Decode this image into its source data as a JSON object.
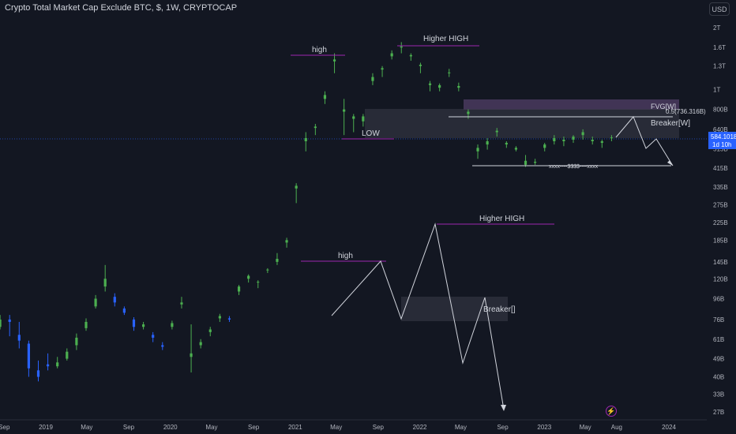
{
  "header": {
    "title": "Crypto Total Market Cap Exclude BTC, $, 1W, CRYPTOCAP",
    "currency_label": "USD"
  },
  "icons": {
    "replay": "lightning-icon"
  },
  "colors": {
    "background": "#131722",
    "up": "#4caf50",
    "down": "#2962ff",
    "annotation": "#9c27b0",
    "price_badge": "#2962ff"
  },
  "chart_data": {
    "type": "candlestick",
    "title": "Crypto Total Market Cap Exclude BTC, $, 1W, CRYPTOCAP",
    "y_scale": "log",
    "ylim": [
      "26B",
      "2.6T"
    ],
    "y_ticks": [
      "2T",
      "1.6T",
      "1.3T",
      "1T",
      "800B",
      "640B",
      "515B",
      "415B",
      "335B",
      "275B",
      "225B",
      "185B",
      "145B",
      "120B",
      "96B",
      "76B",
      "61B",
      "49B",
      "40B",
      "33B",
      "27B"
    ],
    "x_ticks": [
      "Sep",
      "2019",
      "May",
      "Sep",
      "2020",
      "May",
      "Sep",
      "2021",
      "May",
      "Sep",
      "2022",
      "May",
      "Sep",
      "2023",
      "May",
      "Aug",
      "2024"
    ],
    "last_price": "584.101B",
    "price_badge": {
      "value": "584.1018",
      "countdown": "1d 10h"
    },
    "series": [
      {
        "name": "candles",
        "values": [
          {
            "date": "2018-08-20",
            "v": [
              70,
              80,
              76,
              68
            ]
          },
          {
            "date": "2018-09-17",
            "v": [
              76,
              80,
              74,
              63
            ]
          },
          {
            "date": "2018-10-15",
            "v": [
              64,
              74,
              60,
              55
            ]
          },
          {
            "date": "2018-11-12",
            "v": [
              58,
              60,
              44,
              40
            ]
          },
          {
            "date": "2018-12-10",
            "v": [
              43,
              48,
              40,
              38
            ]
          },
          {
            "date": "2019-01-07",
            "v": [
              46,
              52,
              45,
              43
            ]
          },
          {
            "date": "2019-02-04",
            "v": [
              45,
              50,
              47,
              44
            ]
          },
          {
            "date": "2019-03-04",
            "v": [
              49,
              55,
              53,
              48
            ]
          },
          {
            "date": "2019-04-01",
            "v": [
              57,
              65,
              62,
              54
            ]
          },
          {
            "date": "2019-04-29",
            "v": [
              69,
              77,
              74,
              67
            ]
          },
          {
            "date": "2019-05-27",
            "v": [
              88,
              100,
              96,
              86
            ]
          },
          {
            "date": "2019-06-24",
            "v": [
              110,
              140,
              120,
              104
            ]
          },
          {
            "date": "2019-07-22",
            "v": [
              98,
              102,
              92,
              88
            ]
          },
          {
            "date": "2019-08-19",
            "v": [
              86,
              88,
              82,
              80
            ]
          },
          {
            "date": "2019-09-16",
            "v": [
              76,
              78,
              70,
              67
            ]
          },
          {
            "date": "2019-10-14",
            "v": [
              70,
              74,
              72,
              68
            ]
          },
          {
            "date": "2019-11-11",
            "v": [
              64,
              66,
              62,
              59
            ]
          },
          {
            "date": "2019-12-09",
            "v": [
              57,
              59,
              56,
              54
            ]
          },
          {
            "date": "2020-01-06",
            "v": [
              70,
              75,
              73,
              68
            ]
          },
          {
            "date": "2020-02-03",
            "v": [
              90,
              98,
              92,
              86
            ]
          },
          {
            "date": "2020-03-02",
            "v": [
              50,
              72,
              52,
              42
            ]
          },
          {
            "date": "2020-03-30",
            "v": [
              57,
              61,
              59,
              55
            ]
          },
          {
            "date": "2020-04-27",
            "v": [
              66,
              70,
              68,
              63
            ]
          },
          {
            "date": "2020-05-25",
            "v": [
              77,
              81,
              79,
              74
            ]
          },
          {
            "date": "2020-06-22",
            "v": [
              77,
              79,
              76,
              74
            ]
          },
          {
            "date": "2020-07-20",
            "v": [
              104,
              112,
              110,
              100
            ]
          },
          {
            "date": "2020-08-17",
            "v": [
              120,
              126,
              124,
              115
            ]
          },
          {
            "date": "2020-09-14",
            "v": [
              115,
              118,
              116,
              108
            ]
          },
          {
            "date": "2020-10-12",
            "v": [
              132,
              135,
              133,
              128
            ]
          },
          {
            "date": "2020-11-09",
            "v": [
              145,
              160,
              150,
              140
            ]
          },
          {
            "date": "2020-12-07",
            "v": [
              180,
              190,
              185,
              170
            ]
          },
          {
            "date": "2021-01-04",
            "v": [
              330,
              350,
              340,
              280
            ]
          },
          {
            "date": "2021-02-01",
            "v": [
              560,
              620,
              580,
              500
            ]
          },
          {
            "date": "2021-03-01",
            "v": [
              650,
              680,
              660,
              600
            ]
          },
          {
            "date": "2021-03-29",
            "v": [
              900,
              980,
              940,
              850
            ]
          },
          {
            "date": "2021-04-26",
            "v": [
              1370,
              1500,
              1400,
              1200
            ]
          },
          {
            "date": "2021-05-24",
            "v": [
              780,
              900,
              800,
              600
            ]
          },
          {
            "date": "2021-06-21",
            "v": [
              720,
              760,
              740,
              620
            ]
          },
          {
            "date": "2021-07-19",
            "v": [
              700,
              760,
              740,
              660
            ]
          },
          {
            "date": "2021-08-16",
            "v": [
              1100,
              1200,
              1150,
              1050
            ]
          },
          {
            "date": "2021-09-13",
            "v": [
              1250,
              1300,
              1270,
              1150
            ]
          },
          {
            "date": "2021-10-11",
            "v": [
              1450,
              1550,
              1500,
              1400
            ]
          },
          {
            "date": "2021-11-08",
            "v": [
              1600,
              1700,
              1620,
              1500
            ]
          },
          {
            "date": "2021-12-06",
            "v": [
              1450,
              1500,
              1470,
              1380
            ]
          },
          {
            "date": "2022-01-03",
            "v": [
              1300,
              1350,
              1320,
              1200
            ]
          },
          {
            "date": "2022-01-31",
            "v": [
              1050,
              1100,
              1070,
              980
            ]
          },
          {
            "date": "2022-02-28",
            "v": [
              1020,
              1070,
              1050,
              980
            ]
          },
          {
            "date": "2022-03-28",
            "v": [
              1200,
              1260,
              1210,
              1150
            ]
          },
          {
            "date": "2022-04-25",
            "v": [
              1020,
              1080,
              1040,
              980
            ]
          },
          {
            "date": "2022-05-23",
            "v": [
              760,
              800,
              780,
              720
            ]
          },
          {
            "date": "2022-06-20",
            "v": [
              500,
              540,
              520,
              460
            ]
          },
          {
            "date": "2022-07-18",
            "v": [
              540,
              580,
              560,
              510
            ]
          },
          {
            "date": "2022-08-15",
            "v": [
              620,
              650,
              630,
              590
            ]
          },
          {
            "date": "2022-09-12",
            "v": [
              540,
              560,
              550,
              520
            ]
          },
          {
            "date": "2022-10-10",
            "v": [
              510,
              530,
              520,
              500
            ]
          },
          {
            "date": "2022-11-07",
            "v": [
              430,
              480,
              450,
              420
            ]
          },
          {
            "date": "2022-12-05",
            "v": [
              440,
              460,
              445,
              430
            ]
          },
          {
            "date": "2023-01-02",
            "v": [
              520,
              550,
              540,
              500
            ]
          },
          {
            "date": "2023-01-30",
            "v": [
              560,
              600,
              580,
              540
            ]
          },
          {
            "date": "2023-02-27",
            "v": [
              560,
              590,
              570,
              530
            ]
          },
          {
            "date": "2023-03-27",
            "v": [
              570,
              600,
              590,
              550
            ]
          },
          {
            "date": "2023-04-24",
            "v": [
              600,
              640,
              620,
              570
            ]
          },
          {
            "date": "2023-05-22",
            "v": [
              560,
              590,
              570,
              540
            ]
          },
          {
            "date": "2023-06-19",
            "v": [
              550,
              570,
              560,
              520
            ]
          },
          {
            "date": "2023-07-17",
            "v": [
              580,
              600,
              584,
              560
            ]
          }
        ]
      }
    ],
    "annotations": {
      "high_1": "high",
      "higher_high_1": "Higher HIGH",
      "low": "LOW",
      "fvg": "FVG[W]",
      "fib_level": "0.5(736.316B)",
      "breaker_w": "Breaker[W]",
      "liquidity": "xxxx----$$$$----xxxx",
      "high_2": "high",
      "higher_high_2": "Higher HIGH",
      "breaker_2": "Breaker[]"
    }
  }
}
